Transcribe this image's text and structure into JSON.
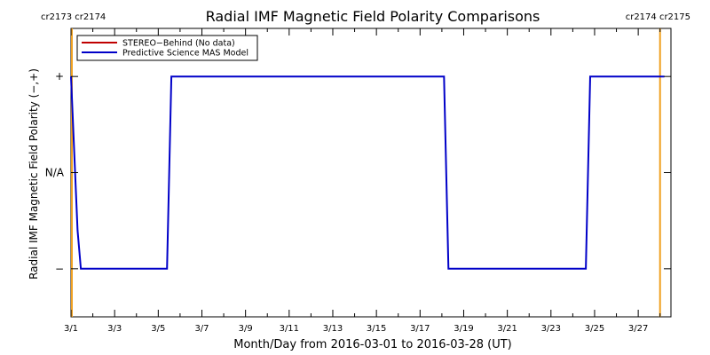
{
  "chart_data": {
    "type": "line",
    "title": "Radial IMF Magnetic Field Polarity Comparisons",
    "xlabel": "Month/Day from 2016-03-01 to 2016-03-28 (UT)",
    "ylabel": "Radial IMF Magnetic Field Polarity (−,+)",
    "x_start": "2016-03-01",
    "xlim": [
      0,
      27.5
    ],
    "ylim": [
      -1.5,
      1.5
    ],
    "x_ticks": [
      {
        "x": 0,
        "label": "3/1"
      },
      {
        "x": 2,
        "label": "3/3"
      },
      {
        "x": 4,
        "label": "3/5"
      },
      {
        "x": 6,
        "label": "3/7"
      },
      {
        "x": 8,
        "label": "3/9"
      },
      {
        "x": 10,
        "label": "3/11"
      },
      {
        "x": 12,
        "label": "3/13"
      },
      {
        "x": 14,
        "label": "3/15"
      },
      {
        "x": 16,
        "label": "3/17"
      },
      {
        "x": 18,
        "label": "3/19"
      },
      {
        "x": 20,
        "label": "3/21"
      },
      {
        "x": 22,
        "label": "3/23"
      },
      {
        "x": 24,
        "label": "3/25"
      },
      {
        "x": 26,
        "label": "3/27"
      }
    ],
    "y_ticks": [
      {
        "y": 1,
        "label": "+"
      },
      {
        "y": 0,
        "label": "N/A"
      },
      {
        "y": -1,
        "label": "−"
      }
    ],
    "carrington_markers": [
      {
        "x": 0.04,
        "label": "cr2173 cr2174"
      },
      {
        "x": 27.0,
        "label": "cr2174 cr2175"
      }
    ],
    "marker_color": "#f0a020",
    "legend_position": "top-left",
    "series": [
      {
        "name": "STEREO−Behind (No data)",
        "color": "#c00000",
        "x": [],
        "y": []
      },
      {
        "name": "Predictive Science MAS Model",
        "color": "#0000c8",
        "x": [
          0.0,
          0.3,
          0.45,
          4.4,
          4.6,
          17.1,
          17.3,
          23.6,
          23.8,
          27.2
        ],
        "y": [
          1,
          -0.6,
          -1,
          -1,
          1,
          1,
          -1,
          -1,
          1,
          1
        ]
      }
    ]
  }
}
